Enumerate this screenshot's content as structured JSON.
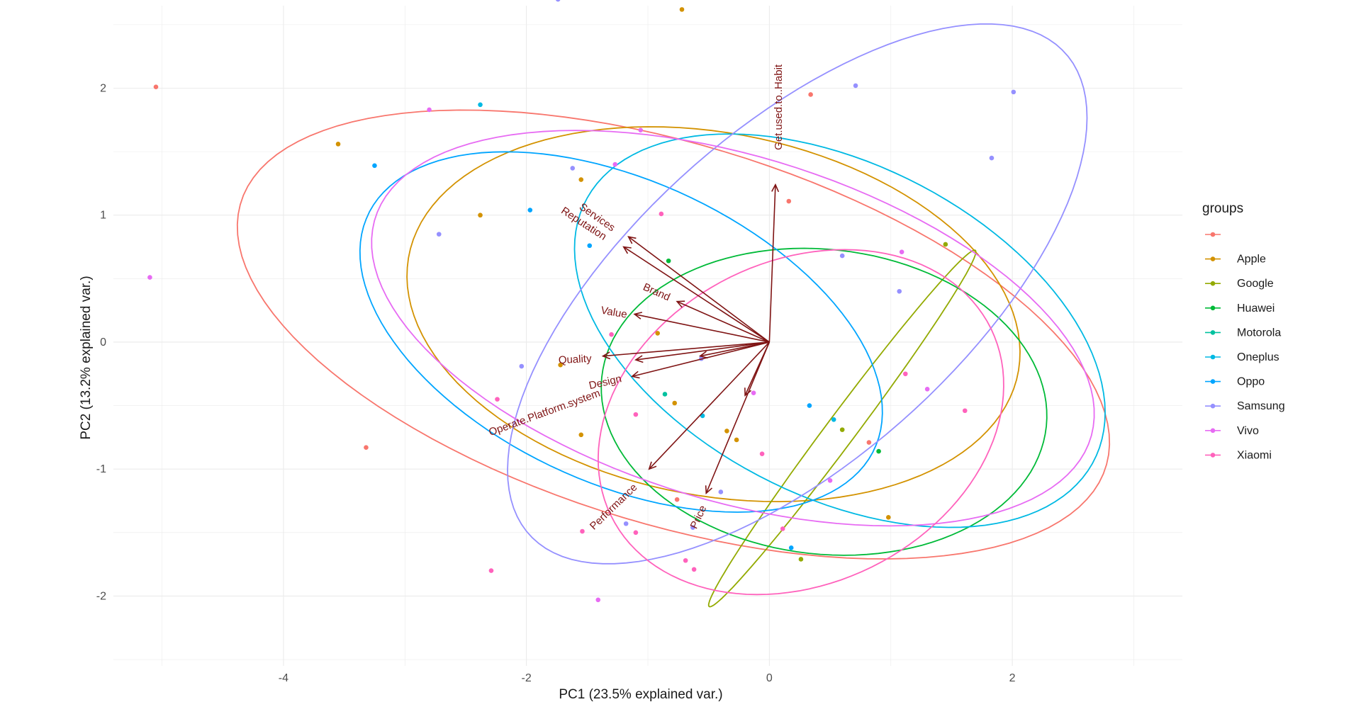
{
  "chart_data": {
    "type": "scatter",
    "subtype": "pca-biplot",
    "xlabel": "PC1 (23.5% explained var.)",
    "ylabel": "PC2 (13.2% explained var.)",
    "xlim": [
      -5.4,
      3.4
    ],
    "ylim": [
      -2.55,
      2.65
    ],
    "x_ticks": [
      -4,
      -2,
      0,
      2
    ],
    "y_ticks": [
      -2,
      -1,
      0,
      1,
      2
    ],
    "grid": true,
    "legend": {
      "title": "groups",
      "position": "right"
    },
    "arrow_color": "#7f1414",
    "groups": [
      {
        "name": "",
        "color": "#F8766D"
      },
      {
        "name": "Apple",
        "color": "#D39200"
      },
      {
        "name": "Google",
        "color": "#93AA00"
      },
      {
        "name": "Huawei",
        "color": "#00BA38"
      },
      {
        "name": "Motorola",
        "color": "#00C19F"
      },
      {
        "name": "Oneplus",
        "color": "#00B9E3"
      },
      {
        "name": "Oppo",
        "color": "#00A5FF"
      },
      {
        "name": "Samsung",
        "color": "#9590FF"
      },
      {
        "name": "Vivo",
        "color": "#E76BF3"
      },
      {
        "name": "Xiaomi",
        "color": "#FF62BC"
      }
    ],
    "points": [
      {
        "x": -5.05,
        "y": 2.01,
        "g": 0
      },
      {
        "x": 0.34,
        "y": 1.95,
        "g": 0
      },
      {
        "x": 0.16,
        "y": 1.11,
        "g": 0
      },
      {
        "x": -3.32,
        "y": -0.83,
        "g": 0
      },
      {
        "x": -0.76,
        "y": -1.24,
        "g": 0
      },
      {
        "x": 0.82,
        "y": -0.79,
        "g": 0
      },
      {
        "x": -3.55,
        "y": 1.56,
        "g": 1
      },
      {
        "x": -2.38,
        "y": 1.0,
        "g": 1
      },
      {
        "x": -1.55,
        "y": 1.28,
        "g": 1
      },
      {
        "x": -0.72,
        "y": 2.62,
        "g": 1
      },
      {
        "x": -1.72,
        "y": -0.18,
        "g": 1
      },
      {
        "x": -0.92,
        "y": 0.07,
        "g": 1
      },
      {
        "x": -0.78,
        "y": -0.48,
        "g": 1
      },
      {
        "x": -0.35,
        "y": -0.7,
        "g": 1
      },
      {
        "x": -0.27,
        "y": -0.77,
        "g": 1
      },
      {
        "x": -1.55,
        "y": -0.73,
        "g": 1
      },
      {
        "x": 0.98,
        "y": -1.38,
        "g": 1
      },
      {
        "x": 0.6,
        "y": -0.69,
        "g": 2
      },
      {
        "x": 0.26,
        "y": -1.71,
        "g": 2
      },
      {
        "x": 1.45,
        "y": 0.77,
        "g": 2
      },
      {
        "x": -0.83,
        "y": 0.64,
        "g": 3
      },
      {
        "x": 0.9,
        "y": -0.86,
        "g": 3
      },
      {
        "x": -0.86,
        "y": -0.41,
        "g": 4
      },
      {
        "x": -2.38,
        "y": 1.87,
        "g": 5
      },
      {
        "x": -0.55,
        "y": -0.58,
        "g": 5
      },
      {
        "x": 0.53,
        "y": -0.61,
        "g": 5
      },
      {
        "x": -3.25,
        "y": 1.39,
        "g": 6
      },
      {
        "x": -1.97,
        "y": 1.04,
        "g": 6
      },
      {
        "x": -1.48,
        "y": 0.76,
        "g": 6
      },
      {
        "x": 0.33,
        "y": -0.5,
        "g": 6
      },
      {
        "x": 0.18,
        "y": -1.62,
        "g": 6
      },
      {
        "x": -1.74,
        "y": 2.7,
        "g": 7
      },
      {
        "x": -2.72,
        "y": 0.85,
        "g": 7
      },
      {
        "x": -1.62,
        "y": 1.37,
        "g": 7
      },
      {
        "x": -2.04,
        "y": -0.19,
        "g": 7
      },
      {
        "x": -0.56,
        "y": -0.13,
        "g": 7
      },
      {
        "x": -0.4,
        "y": -1.18,
        "g": 7
      },
      {
        "x": -1.18,
        "y": -1.43,
        "g": 7
      },
      {
        "x": -0.63,
        "y": -1.46,
        "g": 7
      },
      {
        "x": 0.71,
        "y": 2.02,
        "g": 7
      },
      {
        "x": 1.83,
        "y": 1.45,
        "g": 7
      },
      {
        "x": 1.07,
        "y": 0.4,
        "g": 7
      },
      {
        "x": 2.01,
        "y": 1.97,
        "g": 7
      },
      {
        "x": 0.6,
        "y": 0.68,
        "g": 7
      },
      {
        "x": -5.1,
        "y": 0.51,
        "g": 8
      },
      {
        "x": -2.8,
        "y": 1.83,
        "g": 8
      },
      {
        "x": -1.06,
        "y": 1.67,
        "g": 8
      },
      {
        "x": -1.27,
        "y": 1.4,
        "g": 8
      },
      {
        "x": -0.13,
        "y": -0.4,
        "g": 8
      },
      {
        "x": 0.5,
        "y": -1.09,
        "g": 8
      },
      {
        "x": -1.41,
        "y": -2.03,
        "g": 8
      },
      {
        "x": 1.09,
        "y": 0.71,
        "g": 8
      },
      {
        "x": 1.3,
        "y": -0.37,
        "g": 8
      },
      {
        "x": -2.29,
        "y": -1.8,
        "g": 9
      },
      {
        "x": -2.24,
        "y": -0.45,
        "g": 9
      },
      {
        "x": -0.89,
        "y": 1.01,
        "g": 9
      },
      {
        "x": -1.3,
        "y": 0.06,
        "g": 9
      },
      {
        "x": -1.1,
        "y": -0.57,
        "g": 9
      },
      {
        "x": -1.54,
        "y": -1.49,
        "g": 9
      },
      {
        "x": -1.1,
        "y": -1.5,
        "g": 9
      },
      {
        "x": -0.69,
        "y": -1.72,
        "g": 9
      },
      {
        "x": -0.62,
        "y": -1.79,
        "g": 9
      },
      {
        "x": -0.06,
        "y": -0.88,
        "g": 9
      },
      {
        "x": 0.11,
        "y": -1.47,
        "g": 9
      },
      {
        "x": 1.12,
        "y": -0.25,
        "g": 9
      },
      {
        "x": 1.61,
        "y": -0.54,
        "g": 9
      }
    ],
    "ellipses": [
      {
        "g": 0,
        "cx": -0.79,
        "cy": 0.06,
        "a": 3.71,
        "b": 1.5,
        "angle": -16
      },
      {
        "g": 1,
        "cx": -0.46,
        "cy": 0.22,
        "a": 2.55,
        "b": 1.43,
        "angle": -10
      },
      {
        "g": 2,
        "cx": 0.6,
        "cy": -0.68,
        "a": 1.78,
        "b": 0.12,
        "angle": 52
      },
      {
        "g": 3,
        "cx": 0.45,
        "cy": -0.47,
        "a": 1.84,
        "b": 1.2,
        "angle": -6
      },
      {
        "g": 4,
        "cx": 0.0,
        "cy": 0.0,
        "a": 0.0,
        "b": 0.0,
        "angle": 0
      },
      {
        "g": 5,
        "cx": 0.58,
        "cy": 0.09,
        "a": 2.33,
        "b": 1.32,
        "angle": -25
      },
      {
        "g": 6,
        "cx": -1.22,
        "cy": 0.08,
        "a": 2.28,
        "b": 1.2,
        "angle": -23
      },
      {
        "g": 7,
        "cx": 0.23,
        "cy": 0.38,
        "a": 2.91,
        "b": 1.32,
        "angle": 40
      },
      {
        "g": 8,
        "cx": -0.3,
        "cy": 0.11,
        "a": 3.07,
        "b": 1.36,
        "angle": -16
      },
      {
        "g": 9,
        "cx": 0.26,
        "cy": -0.63,
        "a": 1.73,
        "b": 1.28,
        "angle": 23
      }
    ],
    "vectors": [
      {
        "name": "Get.used.to..Habit",
        "x": 0.05,
        "y": 1.24
      },
      {
        "name": "Services",
        "x": -1.16,
        "y": 0.83
      },
      {
        "name": "Reputation",
        "x": -1.2,
        "y": 0.75
      },
      {
        "name": "Brand",
        "x": -0.76,
        "y": 0.32
      },
      {
        "name": "Value",
        "x": -1.11,
        "y": 0.22
      },
      {
        "name": "Quality",
        "x": -1.37,
        "y": -0.11
      },
      {
        "name": "Design",
        "x": -1.13,
        "y": -0.27
      },
      {
        "name": "Operate.Platform.system",
        "x": -0.99,
        "y": -1.0
      },
      {
        "name": "Performance",
        "x": -1.1,
        "y": -0.14
      },
      {
        "name": "Price",
        "x": -0.52,
        "y": -1.19
      },
      {
        "name": "",
        "x": -0.57,
        "y": -0.11
      },
      {
        "name": "",
        "x": -0.2,
        "y": -0.42
      }
    ],
    "vector_labels": [
      {
        "name": "Get.used.to..Habit",
        "x": 0.08,
        "y": 1.85,
        "rot": -90
      },
      {
        "name": "Services",
        "x": -1.42,
        "y": 0.98,
        "rot": 35
      },
      {
        "name": "Reputation",
        "x": -1.53,
        "y": 0.93,
        "rot": 33
      },
      {
        "name": "Brand",
        "x": -0.93,
        "y": 0.39,
        "rot": 24
      },
      {
        "name": "Value",
        "x": -1.28,
        "y": 0.23,
        "rot": 10
      },
      {
        "name": "Quality",
        "x": -1.6,
        "y": -0.14,
        "rot": -3
      },
      {
        "name": "Design",
        "x": -1.35,
        "y": -0.32,
        "rot": -13
      },
      {
        "name": "Operate.Platform.system",
        "x": -1.85,
        "y": -0.56,
        "rot": -20
      },
      {
        "name": "Performance",
        "x": -1.28,
        "y": -1.3,
        "rot": -44
      },
      {
        "name": "Price",
        "x": -0.58,
        "y": -1.38,
        "rot": -65
      }
    ]
  }
}
